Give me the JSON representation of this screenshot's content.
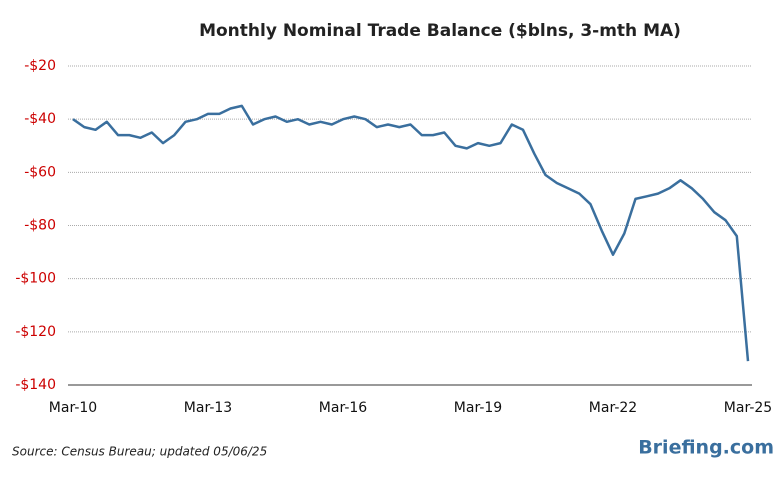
{
  "chart_data": {
    "type": "line",
    "title": "Monthly Nominal Trade Balance ($blns, 3-mth MA)",
    "source": "Source:  Census Bureau;  updated  05/06/25",
    "brand": "Briefing.com",
    "categories": [
      "Mar-10",
      null,
      null,
      null,
      null,
      null,
      null,
      null,
      null,
      null,
      null,
      null,
      "Mar-13",
      null,
      null,
      null,
      null,
      null,
      null,
      null,
      null,
      null,
      null,
      null,
      "Mar-16",
      null,
      null,
      null,
      null,
      null,
      null,
      null,
      null,
      null,
      null,
      null,
      "Mar-19",
      null,
      null,
      null,
      null,
      null,
      null,
      null,
      null,
      null,
      null,
      null,
      "Mar-22",
      null,
      null,
      null,
      null,
      null,
      null,
      null,
      null,
      null,
      null,
      null,
      "Mar-25"
    ],
    "series": [
      {
        "name": "Trade Balance",
        "color": "#3a6f9e",
        "values": [
          -40,
          -43,
          -44,
          -41,
          -46,
          -46,
          -47,
          -45,
          -49,
          -46,
          -41,
          -40,
          -38,
          -38,
          -36,
          -35,
          -42,
          -40,
          -39,
          -41,
          -40,
          -42,
          -41,
          -42,
          -40,
          -39,
          -40,
          -43,
          -42,
          -43,
          -42,
          -46,
          -46,
          -45,
          -50,
          -51,
          -49,
          -50,
          -49,
          -42,
          -44,
          -53,
          -61,
          -64,
          -66,
          -68,
          -72,
          -82,
          -91,
          -83,
          -70,
          -69,
          -68,
          -66,
          -63,
          -66,
          -70,
          -75,
          -78,
          -84,
          -131
        ]
      }
    ],
    "ylim": [
      -140,
      -20
    ],
    "yticks": [
      {
        "value": -20,
        "label": "-$20"
      },
      {
        "value": -40,
        "label": "-$40"
      },
      {
        "value": -60,
        "label": "-$60"
      },
      {
        "value": -80,
        "label": "-$80"
      },
      {
        "value": -100,
        "label": "-$100"
      },
      {
        "value": -120,
        "label": "-$120"
      },
      {
        "value": -140,
        "label": "-$140"
      }
    ],
    "grid": true
  }
}
